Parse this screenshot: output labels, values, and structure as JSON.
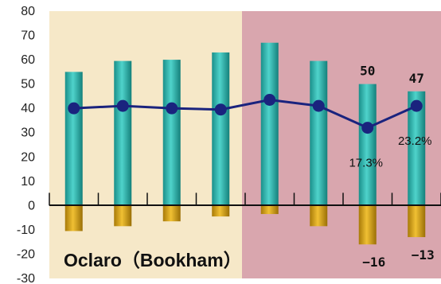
{
  "chart_data": {
    "type": "bar",
    "title": "Oclaro（Bookham）",
    "xlabel": "",
    "ylabel": "",
    "ylim": [
      -30,
      80
    ],
    "yticks": [
      80,
      70,
      60,
      50,
      40,
      30,
      20,
      10,
      0,
      -10,
      -20,
      -30
    ],
    "grid": false,
    "legend": "none",
    "categories": [
      "",
      "",
      "",
      "",
      "",
      "",
      "",
      ""
    ],
    "series": [
      {
        "kind": "bar",
        "color": "#2aa9a3",
        "values": [
          55,
          59.5,
          60,
          63,
          67,
          59.5,
          50,
          47
        ]
      },
      {
        "kind": "bar",
        "color": "#d4a017",
        "values": [
          -10.5,
          -8.5,
          -6.5,
          -4.5,
          -3.5,
          -8.5,
          -16,
          -13
        ]
      },
      {
        "kind": "line",
        "color": "#1a237e",
        "values": [
          40,
          41,
          40,
          39.5,
          43.5,
          41,
          32,
          41
        ]
      }
    ],
    "data_labels": {
      "bars": [
        {
          "index": 6,
          "text": "50"
        },
        {
          "index": 7,
          "text": "47"
        }
      ],
      "negative_bars": [
        {
          "index": 6,
          "text": "−16"
        },
        {
          "index": 7,
          "text": "−13"
        }
      ],
      "line": [
        {
          "index": 6,
          "text": "17.3%"
        },
        {
          "index": 7,
          "text": "23.2%"
        }
      ]
    },
    "background_colors": {
      "left": "#f6e8c8",
      "right": "#d9a6ae"
    }
  }
}
